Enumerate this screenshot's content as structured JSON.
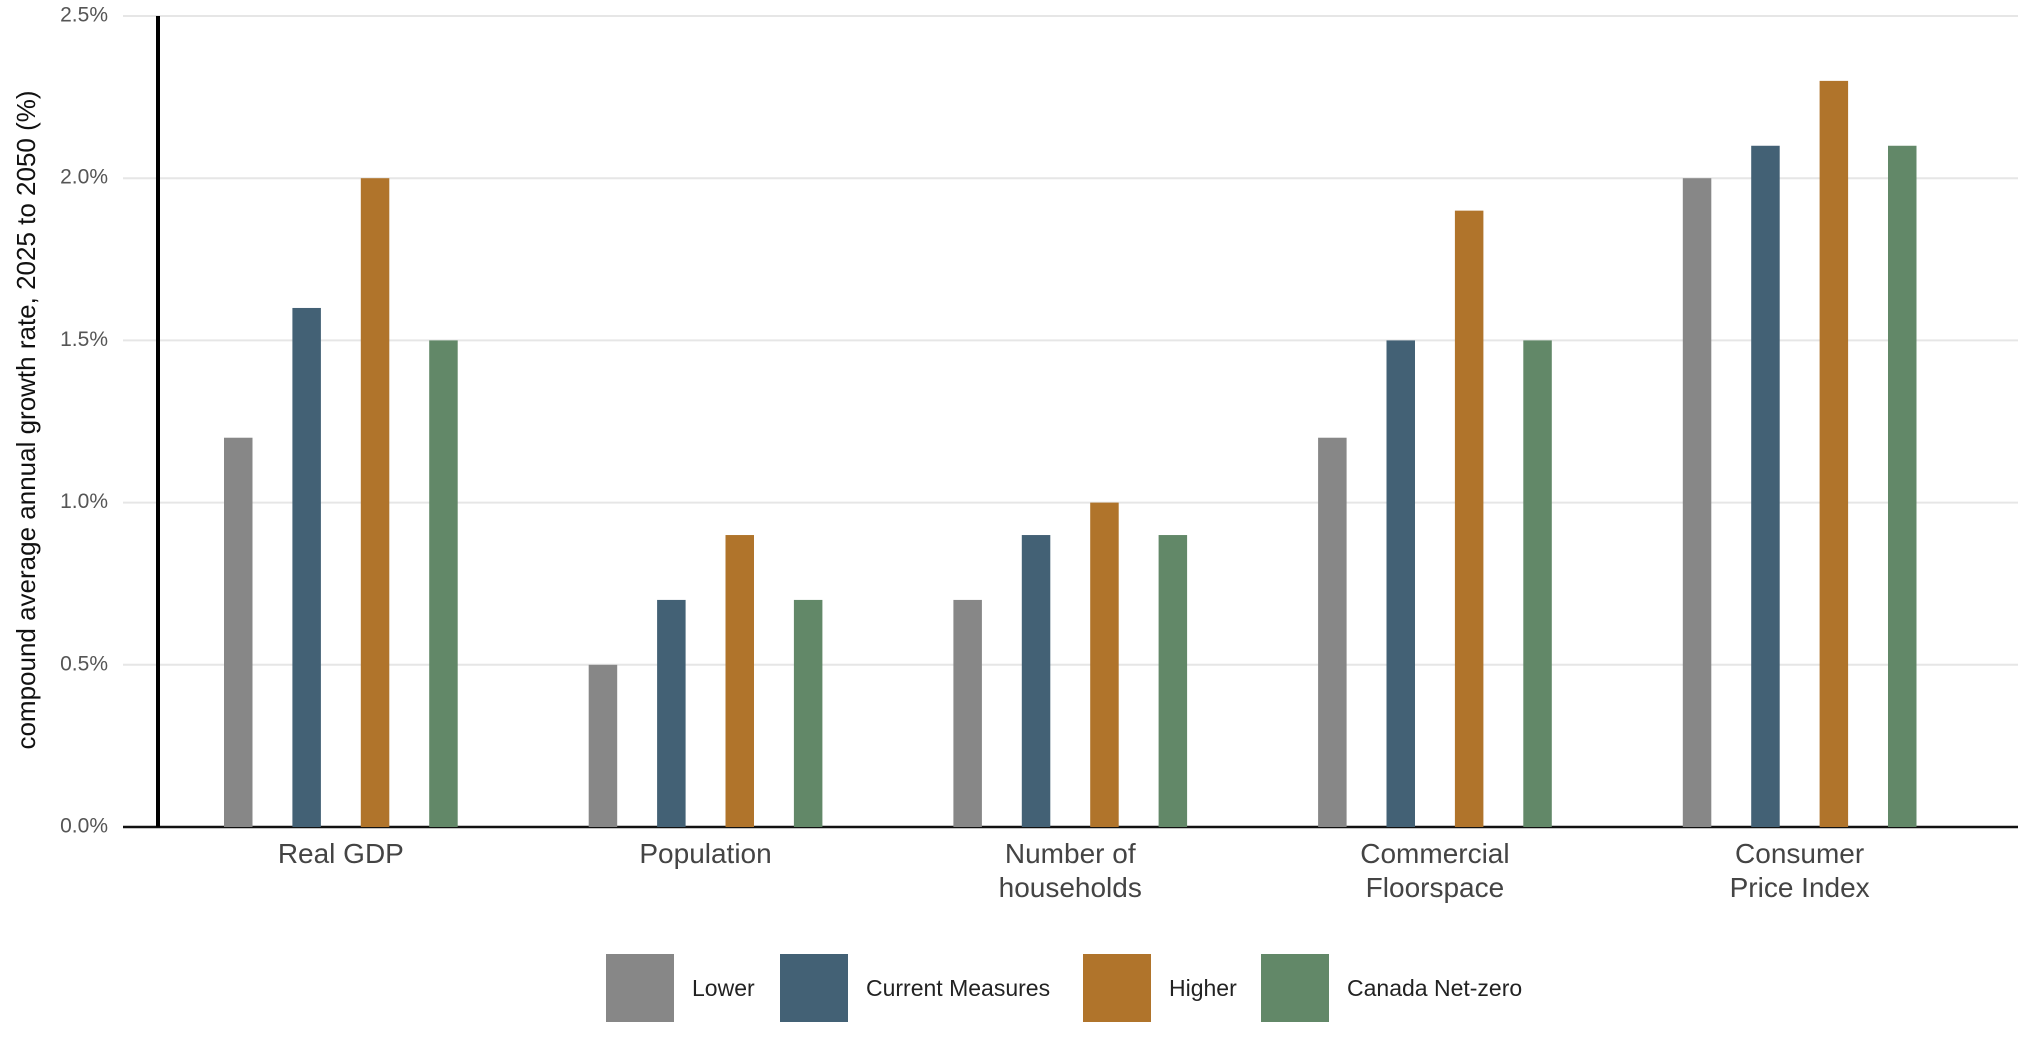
{
  "chart_data": {
    "type": "bar",
    "y_label": "compound average annual growth rate, 2025 to 2050 (%)",
    "categories": [
      "Real GDP",
      "Population",
      "Number of\nhouseholds",
      "Commercial\nFloorspace",
      "Consumer\nPrice Index"
    ],
    "series": [
      {
        "name": "Lower",
        "color": "#878787",
        "values": [
          1.2,
          0.5,
          0.7,
          1.2,
          2.0
        ]
      },
      {
        "name": "Current Measures",
        "color": "#436175",
        "values": [
          1.6,
          0.7,
          0.9,
          1.5,
          2.1
        ]
      },
      {
        "name": "Higher",
        "color": "#b0742b",
        "values": [
          2.0,
          0.9,
          1.0,
          1.9,
          2.3
        ]
      },
      {
        "name": "Canada Net-zero",
        "color": "#628868",
        "values": [
          1.5,
          0.7,
          0.9,
          1.5,
          2.1
        ]
      }
    ],
    "ylim": [
      0,
      2.5
    ],
    "yticks": [
      {
        "value": 0,
        "label": "0.0%"
      },
      {
        "value": 0.5,
        "label": "0.5%"
      },
      {
        "value": 1,
        "label": "1.0%"
      },
      {
        "value": 1.5,
        "label": "1.5%"
      },
      {
        "value": 2,
        "label": "2.0%"
      },
      {
        "value": 2.5,
        "label": "2.5%"
      }
    ],
    "grid": true,
    "legend": "bottom"
  }
}
